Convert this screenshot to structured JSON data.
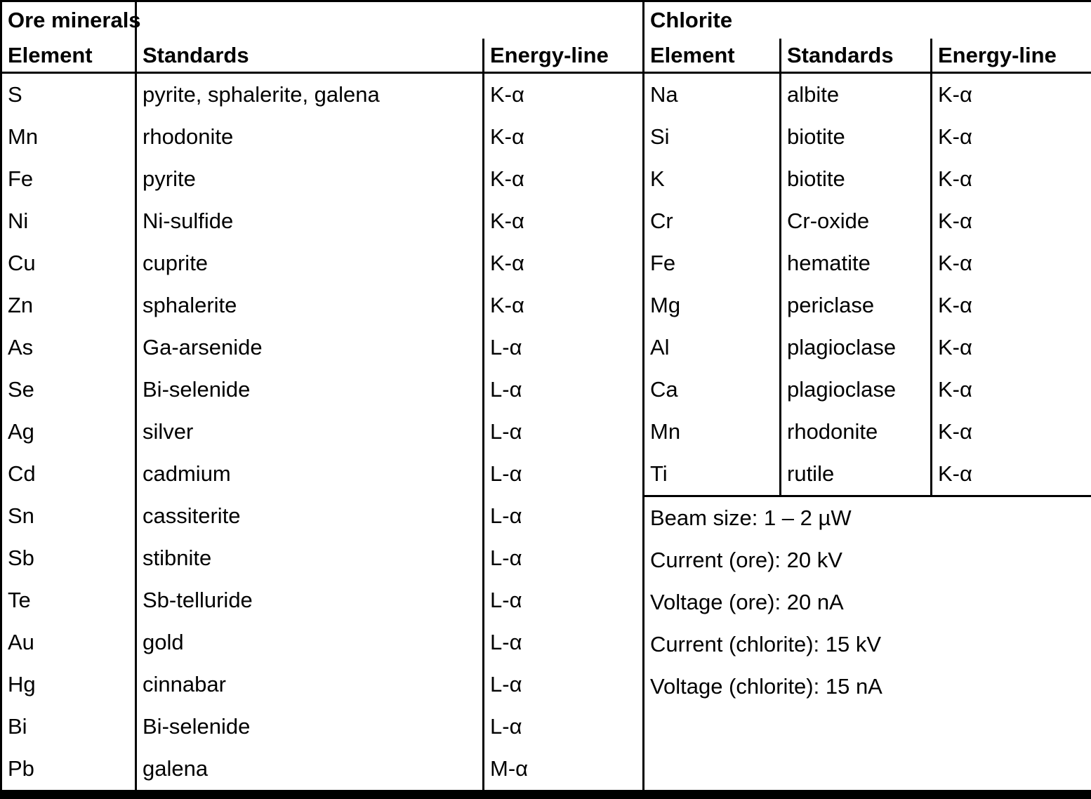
{
  "ore_table": {
    "title": "Ore minerals",
    "headers": {
      "element": "Element",
      "standards": "Standards",
      "energy_line": "Energy-line"
    },
    "rows": [
      {
        "element": "S",
        "standards": "pyrite, sphalerite, galena",
        "energy_line": "K-α"
      },
      {
        "element": "Mn",
        "standards": "rhodonite",
        "energy_line": "K-α"
      },
      {
        "element": "Fe",
        "standards": "pyrite",
        "energy_line": "K-α"
      },
      {
        "element": "Ni",
        "standards": "Ni-sulfide",
        "energy_line": "K-α"
      },
      {
        "element": "Cu",
        "standards": "cuprite",
        "energy_line": "K-α"
      },
      {
        "element": "Zn",
        "standards": "sphalerite",
        "energy_line": "K-α"
      },
      {
        "element": "As",
        "standards": "Ga-arsenide",
        "energy_line": "L-α"
      },
      {
        "element": "Se",
        "standards": "Bi-selenide",
        "energy_line": "L-α"
      },
      {
        "element": "Ag",
        "standards": "silver",
        "energy_line": "L-α"
      },
      {
        "element": "Cd",
        "standards": "cadmium",
        "energy_line": "L-α"
      },
      {
        "element": "Sn",
        "standards": "cassiterite",
        "energy_line": "L-α"
      },
      {
        "element": "Sb",
        "standards": "stibnite",
        "energy_line": "L-α"
      },
      {
        "element": "Te",
        "standards": "Sb-telluride",
        "energy_line": "L-α"
      },
      {
        "element": "Au",
        "standards": "gold",
        "energy_line": "L-α"
      },
      {
        "element": "Hg",
        "standards": "cinnabar",
        "energy_line": "L-α"
      },
      {
        "element": "Bi",
        "standards": "Bi-selenide",
        "energy_line": "L-α"
      },
      {
        "element": "Pb",
        "standards": "galena",
        "energy_line": "M-α"
      }
    ]
  },
  "chlorite_table": {
    "title": "Chlorite",
    "headers": {
      "element": "Element",
      "standards": "Standards",
      "energy_line": "Energy-line"
    },
    "rows": [
      {
        "element": "Na",
        "standards": "albite",
        "energy_line": "K-α"
      },
      {
        "element": "Si",
        "standards": "biotite",
        "energy_line": "K-α"
      },
      {
        "element": "K",
        "standards": "biotite",
        "energy_line": "K-α"
      },
      {
        "element": "Cr",
        "standards": "Cr-oxide",
        "energy_line": "K-α"
      },
      {
        "element": "Fe",
        "standards": "hematite",
        "energy_line": "K-α"
      },
      {
        "element": "Mg",
        "standards": "periclase",
        "energy_line": "K-α"
      },
      {
        "element": "Al",
        "standards": "plagioclase",
        "energy_line": "K-α"
      },
      {
        "element": "Ca",
        "standards": "plagioclase",
        "energy_line": "K-α"
      },
      {
        "element": "Mn",
        "standards": "rhodonite",
        "energy_line": "K-α"
      },
      {
        "element": "Ti",
        "standards": "rutile",
        "energy_line": "K-α"
      }
    ]
  },
  "analysis_conditions": {
    "beam_size": "Beam size: 1 – 2 µW",
    "current_ore": "Current (ore): 20 kV",
    "voltage_ore": "Voltage (ore): 20 nA",
    "current_chlorite": "Current (chlorite): 15 kV",
    "voltage_chlorite": "Voltage (chlorite): 15 nA"
  }
}
